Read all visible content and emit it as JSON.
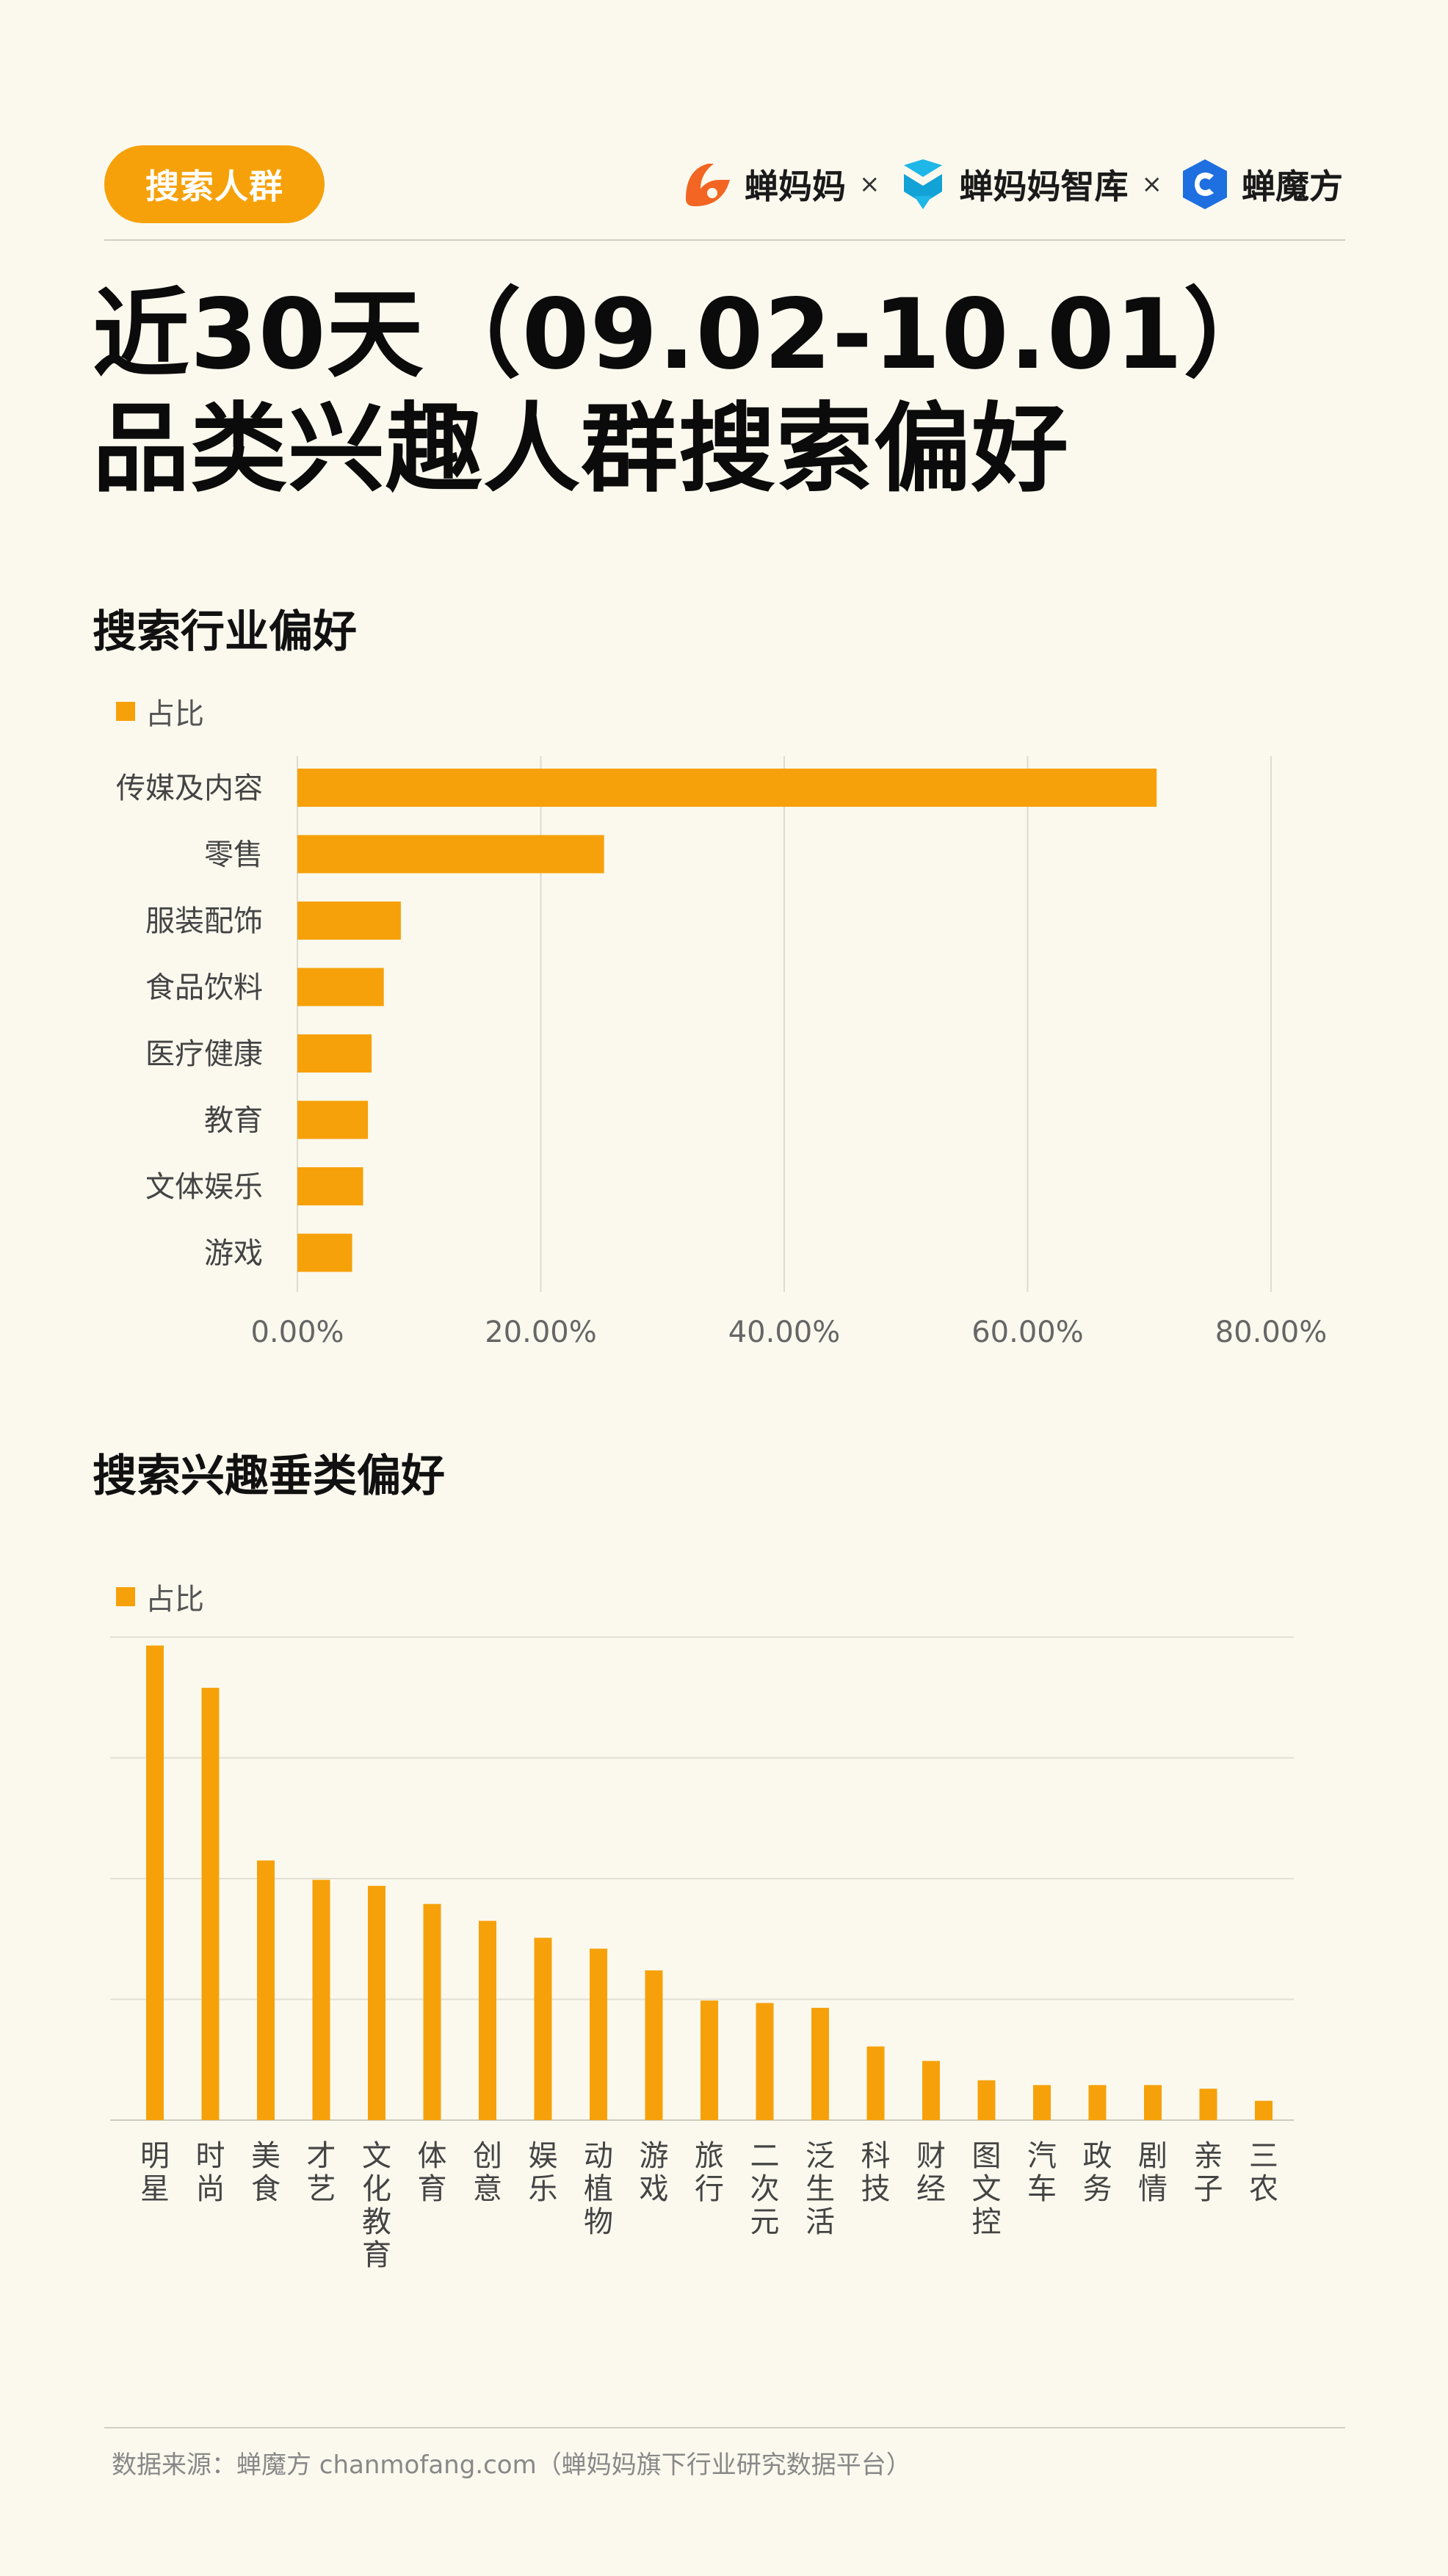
{
  "header": {
    "tag": "搜索人群",
    "brands": [
      {
        "name": "蝉妈妈",
        "icon": "chanmama-logo-icon",
        "color": "#f26522"
      },
      {
        "name": "蝉妈妈智库",
        "icon": "chanmama-zhiku-logo-icon",
        "color": "#1fb6e8"
      },
      {
        "name": "蝉魔方",
        "icon": "chanmofang-logo-icon",
        "color": "#1e6fe0"
      }
    ],
    "separator": "×"
  },
  "title": {
    "line1": "近30天（09.02-10.01）",
    "line2": "品类兴趣人群搜索偏好"
  },
  "sections": {
    "industry_title": "搜索行业偏好",
    "interest_title": "搜索兴趣垂类偏好",
    "legend_label": "占比"
  },
  "footer": {
    "source": "数据来源：蝉魔方 chanmofang.com（蝉妈妈旗下行业研究数据平台）"
  },
  "colors": {
    "accent": "#f6a10a",
    "background": "#fbf9ee"
  },
  "chart_data": [
    {
      "type": "bar",
      "orientation": "horizontal",
      "title": "搜索行业偏好",
      "categories": [
        "传媒及内容",
        "零售",
        "服装配饰",
        "食品饮料",
        "医疗健康",
        "教育",
        "文体娱乐",
        "游戏"
      ],
      "series": [
        {
          "name": "占比",
          "values": [
            70.6,
            25.2,
            8.5,
            7.1,
            6.1,
            5.8,
            5.4,
            4.5
          ]
        }
      ],
      "xlim": [
        0,
        80
      ],
      "ticks": [
        "0.00%",
        "20.00%",
        "40.00%",
        "60.00%",
        "80.00%"
      ],
      "tick_values": [
        0,
        20,
        40,
        60,
        80
      ],
      "grid": "vertical",
      "legend": "top-left"
    },
    {
      "type": "bar",
      "orientation": "vertical",
      "title": "搜索兴趣垂类偏好",
      "categories": [
        "明星",
        "时尚",
        "美食",
        "才艺",
        "文化教育",
        "体育",
        "创意",
        "娱乐",
        "动植物",
        "游戏",
        "旅行",
        "二次元",
        "泛生活",
        "科技",
        "财经",
        "图文控",
        "汽车",
        "政务",
        "剧情",
        "亲子",
        "三农"
      ],
      "series": [
        {
          "name": "占比",
          "values": [
            3.93,
            3.58,
            2.15,
            1.99,
            1.94,
            1.79,
            1.65,
            1.51,
            1.42,
            1.24,
            0.99,
            0.97,
            0.93,
            0.61,
            0.49,
            0.33,
            0.29,
            0.29,
            0.29,
            0.26,
            0.16
          ]
        }
      ],
      "ylim": [
        0,
        4
      ],
      "ytick_count": 5,
      "grid": "horizontal",
      "legend": "top-left"
    }
  ]
}
